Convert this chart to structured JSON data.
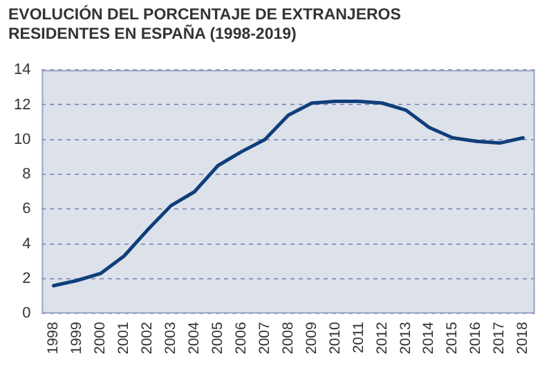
{
  "chart_data": {
    "type": "line",
    "title": "EVOLUCIÓN DEL PORCENTAJE DE EXTRANJEROS RESIDENTES EN ESPAÑA (1998-2019)",
    "categories": [
      "1998",
      "1999",
      "2000",
      "2001",
      "2002",
      "2003",
      "2004",
      "2005",
      "2006",
      "2007",
      "2008",
      "2009",
      "2010",
      "2011",
      "2012",
      "2013",
      "2014",
      "2015",
      "2016",
      "2017",
      "2018"
    ],
    "series": [
      {
        "color": "#0f3f7a",
        "values": [
          1.6,
          1.9,
          2.3,
          3.3,
          4.8,
          6.2,
          7.0,
          8.5,
          9.3,
          10.0,
          11.4,
          12.1,
          12.2,
          12.2,
          12.1,
          11.7,
          10.7,
          10.1,
          9.9,
          9.8,
          10.1
        ]
      }
    ],
    "ylim": [
      0,
      14
    ],
    "yticks": [
      0,
      2,
      4,
      6,
      8,
      10,
      12,
      14
    ],
    "grid": "y",
    "legend": false,
    "marker": "none",
    "line_style": "solid"
  }
}
